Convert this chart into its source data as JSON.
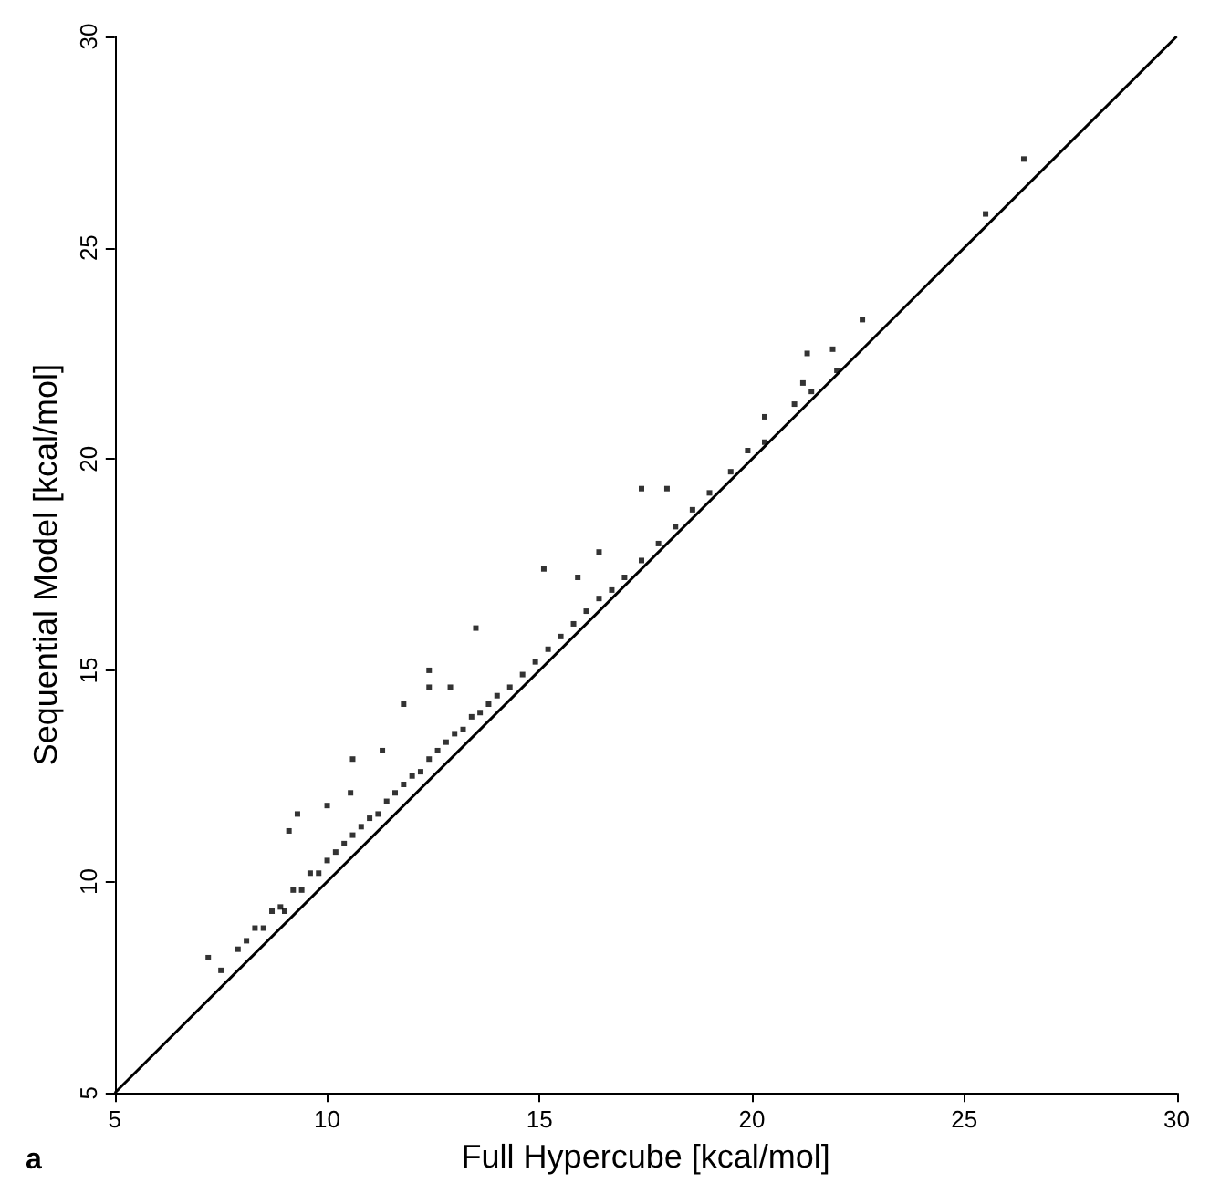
{
  "chart_data": {
    "type": "scatter",
    "xlabel": "Full Hypercube [kcal/mol]",
    "ylabel": "Sequential Model [kcal/mol]",
    "annotations": [
      "a"
    ],
    "xlim": [
      5,
      30
    ],
    "ylim": [
      5,
      30
    ],
    "xticks": [
      5,
      10,
      15,
      20,
      25,
      30
    ],
    "yticks": [
      5,
      10,
      15,
      20,
      25,
      30
    ],
    "grid": false,
    "marker": "square",
    "series": [
      {
        "color": "#000000",
        "x": [
          7.5,
          7.9,
          8.1,
          8.3,
          8.5,
          8.7,
          8.9,
          9.0,
          9.2,
          9.4,
          9.6,
          9.8,
          10.0,
          10.2,
          10.4,
          10.6,
          10.8,
          11.0,
          11.2,
          11.4,
          11.6,
          11.8,
          12.0,
          12.2,
          12.4,
          12.6,
          12.8,
          13.0,
          13.2,
          13.4,
          13.6,
          13.8,
          14.0,
          14.3,
          14.6,
          14.9,
          15.2,
          15.5,
          15.8,
          16.1,
          16.4,
          16.7,
          17.0,
          17.4,
          17.8,
          18.2,
          18.6,
          19.0,
          19.5,
          19.9,
          20.3,
          21.0,
          21.4,
          22.0,
          7.2,
          9.3,
          9.1,
          10.6,
          11.3,
          11.8,
          12.4,
          12.9,
          10.0,
          10.55,
          13.5,
          15.1,
          17.4,
          18.0,
          15.9,
          12.4,
          16.4,
          21.3,
          21.9,
          22.6,
          21.2,
          20.3,
          25.5,
          26.4
        ],
        "values": [
          7.9,
          8.4,
          8.6,
          8.9,
          8.9,
          9.3,
          9.4,
          9.3,
          9.8,
          9.8,
          10.2,
          10.2,
          10.5,
          10.7,
          10.9,
          11.1,
          11.3,
          11.5,
          11.6,
          11.9,
          12.1,
          12.3,
          12.5,
          12.6,
          12.9,
          13.1,
          13.3,
          13.5,
          13.6,
          13.9,
          14.0,
          14.2,
          14.4,
          14.6,
          14.9,
          15.2,
          15.5,
          15.8,
          16.1,
          16.4,
          16.7,
          16.9,
          17.2,
          17.6,
          18.0,
          18.4,
          18.8,
          19.2,
          19.7,
          20.2,
          20.4,
          21.3,
          21.6,
          22.1,
          8.2,
          11.6,
          11.2,
          12.9,
          13.1,
          14.2,
          14.6,
          14.6,
          11.8,
          12.1,
          16.0,
          17.4,
          19.3,
          19.3,
          17.2,
          15.0,
          17.8,
          22.5,
          22.6,
          23.3,
          21.8,
          21.0,
          25.8,
          27.1
        ]
      },
      {
        "type": "line",
        "color": "#000000",
        "marker": "none",
        "x": [
          5,
          30
        ],
        "values": [
          5,
          30
        ]
      }
    ]
  }
}
